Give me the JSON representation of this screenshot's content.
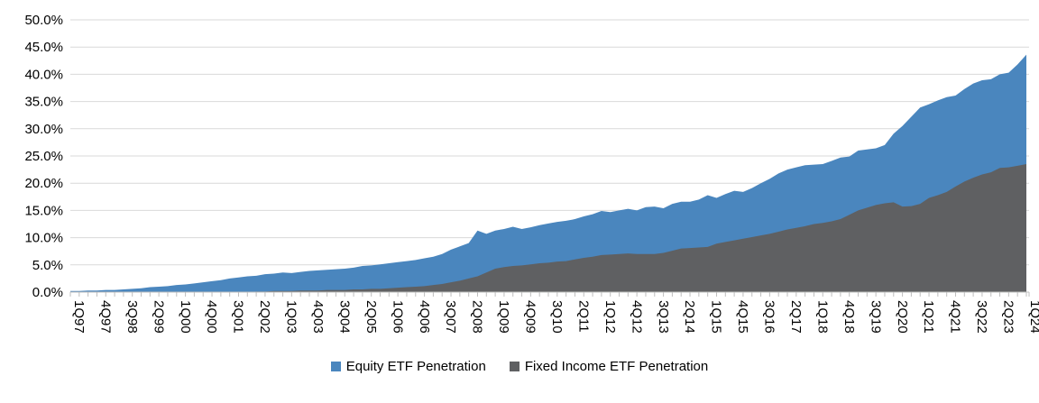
{
  "chart_data": {
    "type": "area",
    "title": "",
    "grid": "horizontal",
    "legend_position": "bottom-center",
    "y_axis": {
      "min": 0,
      "max": 50,
      "tick_step": 5,
      "tick_labels": [
        "0.0%",
        "5.0%",
        "10.0%",
        "15.0%",
        "20.0%",
        "25.0%",
        "30.0%",
        "35.0%",
        "40.0%",
        "45.0%",
        "50.0%"
      ]
    },
    "x_axis": {
      "unit": "quarter",
      "first": "1Q97",
      "last": "1Q24",
      "label_every_n_points": 3,
      "tick_labels": [
        "1Q97",
        "4Q97",
        "3Q98",
        "2Q99",
        "1Q00",
        "4Q00",
        "3Q01",
        "2Q02",
        "1Q03",
        "4Q03",
        "3Q04",
        "2Q05",
        "1Q06",
        "4Q06",
        "3Q07",
        "2Q08",
        "1Q09",
        "4Q09",
        "3Q10",
        "2Q11",
        "1Q12",
        "4Q12",
        "3Q13",
        "2Q14",
        "1Q15",
        "4Q15",
        "3Q16",
        "2Q17",
        "1Q18",
        "4Q18",
        "3Q19",
        "2Q20",
        "1Q21",
        "4Q21",
        "3Q22",
        "2Q23",
        "1Q24"
      ]
    },
    "colors": {
      "equity": "#4A86BE",
      "fixed_income": "#5F6062",
      "gridline": "#D9D9D9",
      "axis": "#BFBFBF",
      "text": "#000000"
    },
    "series": [
      {
        "name": "Equity ETF Penetration",
        "color": "#4A86BE",
        "values": [
          0.2,
          0.2,
          0.3,
          0.3,
          0.4,
          0.4,
          0.5,
          0.6,
          0.7,
          0.9,
          1.0,
          1.1,
          1.3,
          1.4,
          1.6,
          1.8,
          2.0,
          2.2,
          2.5,
          2.7,
          2.9,
          3.0,
          3.3,
          3.4,
          3.6,
          3.5,
          3.7,
          3.9,
          4.0,
          4.1,
          4.2,
          4.3,
          4.5,
          4.8,
          4.9,
          5.1,
          5.3,
          5.5,
          5.7,
          5.9,
          6.2,
          6.5,
          7.0,
          7.8,
          8.4,
          9.0,
          11.3,
          10.7,
          11.3,
          11.6,
          12.0,
          11.6,
          11.9,
          12.3,
          12.6,
          12.9,
          13.1,
          13.4,
          13.9,
          14.3,
          14.9,
          14.7,
          15.0,
          15.3,
          15.0,
          15.6,
          15.7,
          15.4,
          16.2,
          16.6,
          16.6,
          17.0,
          17.8,
          17.3,
          18.0,
          18.6,
          18.4,
          19.1,
          20.0,
          20.8,
          21.8,
          22.5,
          22.9,
          23.3,
          23.4,
          23.5,
          24.1,
          24.7,
          24.9,
          26.0,
          26.2,
          26.4,
          27.0,
          29.1,
          30.5,
          32.2,
          33.9,
          34.5,
          35.2,
          35.8,
          36.1,
          37.3,
          38.3,
          38.9,
          39.1,
          40.0,
          40.3,
          41.8,
          43.6
        ]
      },
      {
        "name": "Fixed Income ETF Penetration",
        "color": "#5F6062",
        "values": [
          0.0,
          0.0,
          0.0,
          0.0,
          0.0,
          0.0,
          0.0,
          0.0,
          0.0,
          0.0,
          0.0,
          0.0,
          0.0,
          0.0,
          0.0,
          0.0,
          0.0,
          0.0,
          0.0,
          0.0,
          0.0,
          0.1,
          0.1,
          0.2,
          0.2,
          0.2,
          0.3,
          0.3,
          0.3,
          0.4,
          0.4,
          0.4,
          0.5,
          0.5,
          0.6,
          0.6,
          0.7,
          0.8,
          0.9,
          1.0,
          1.1,
          1.3,
          1.5,
          1.8,
          2.1,
          2.5,
          2.9,
          3.6,
          4.3,
          4.6,
          4.8,
          4.9,
          5.1,
          5.3,
          5.4,
          5.6,
          5.7,
          6.0,
          6.3,
          6.5,
          6.8,
          6.9,
          7.0,
          7.1,
          7.0,
          7.0,
          7.0,
          7.2,
          7.6,
          8.0,
          8.1,
          8.2,
          8.3,
          8.9,
          9.2,
          9.5,
          9.8,
          10.1,
          10.4,
          10.7,
          11.1,
          11.5,
          11.8,
          12.1,
          12.5,
          12.7,
          13.0,
          13.4,
          14.2,
          15.0,
          15.5,
          16.0,
          16.3,
          16.5,
          15.7,
          15.8,
          16.2,
          17.3,
          17.8,
          18.4,
          19.4,
          20.3,
          21.0,
          21.6,
          22.0,
          22.8,
          22.9,
          23.2,
          23.5
        ]
      }
    ]
  },
  "legend": {
    "equity_label": "Equity ETF Penetration",
    "fixed_income_label": "Fixed Income ETF Penetration"
  }
}
